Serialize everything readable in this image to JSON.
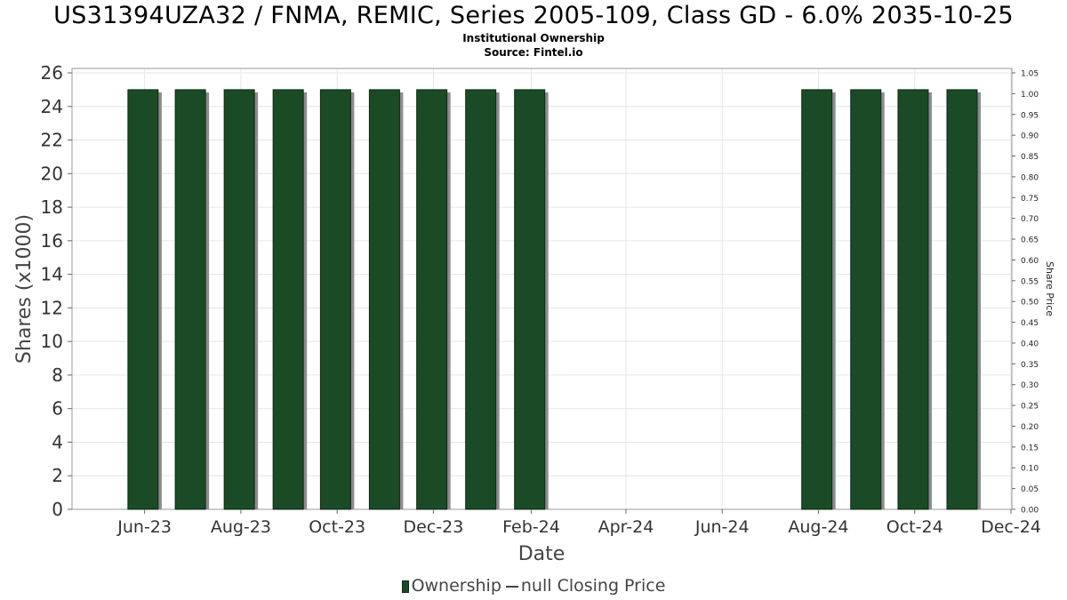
{
  "header": {
    "title": "US31394UZA32 / FNMA, REMIC, Series 2005-109, Class GD - 6.0% 2035-10-25",
    "subtitle": "Institutional Ownership",
    "source": "Source: Fintel.io"
  },
  "legend": {
    "ownership_label": "Ownership",
    "price_label": "null Closing Price"
  },
  "colors": {
    "bar": "#1a4a26",
    "bar_dark": "#0d2a14",
    "shadow": "#8c8c8c",
    "grid": "#e6e6e6"
  },
  "chart_data": {
    "type": "bar",
    "xlabel": "Date",
    "ylabel": "Shares (x1000)",
    "y2label": "Share Price",
    "ylim": [
      0,
      26
    ],
    "y2lim": [
      0,
      1.05
    ],
    "yticks": [
      "0",
      "2",
      "4",
      "6",
      "8",
      "10",
      "12",
      "14",
      "16",
      "18",
      "20",
      "22",
      "24",
      "26"
    ],
    "y2ticks": [
      "0.00",
      "0.05",
      "0.10",
      "0.15",
      "0.20",
      "0.25",
      "0.30",
      "0.35",
      "0.40",
      "0.45",
      "0.50",
      "0.55",
      "0.60",
      "0.65",
      "0.70",
      "0.75",
      "0.80",
      "0.85",
      "0.90",
      "0.95",
      "1.00",
      "1.05"
    ],
    "xticks": [
      {
        "label": "Jun-23",
        "date": "2023-06-01"
      },
      {
        "label": "Aug-23",
        "date": "2023-08-01"
      },
      {
        "label": "Oct-23",
        "date": "2023-10-01"
      },
      {
        "label": "Dec-23",
        "date": "2023-12-01"
      },
      {
        "label": "Feb-24",
        "date": "2024-02-01"
      },
      {
        "label": "Apr-24",
        "date": "2024-04-01"
      },
      {
        "label": "Jun-24",
        "date": "2024-06-01"
      },
      {
        "label": "Aug-24",
        "date": "2024-08-01"
      },
      {
        "label": "Oct-24",
        "date": "2024-10-01"
      },
      {
        "label": "Dec-24",
        "date": "2024-12-01"
      }
    ],
    "xlim": [
      "2023-04-16",
      "2024-12-01"
    ],
    "grid": true,
    "legend_position": "bottom",
    "series": [
      {
        "name": "Ownership",
        "points": [
          {
            "date": "2023-05-31",
            "value": 25
          },
          {
            "date": "2023-06-30",
            "value": 25
          },
          {
            "date": "2023-07-31",
            "value": 25
          },
          {
            "date": "2023-08-31",
            "value": 25
          },
          {
            "date": "2023-09-30",
            "value": 25
          },
          {
            "date": "2023-10-31",
            "value": 25
          },
          {
            "date": "2023-11-30",
            "value": 25
          },
          {
            "date": "2023-12-31",
            "value": 25
          },
          {
            "date": "2024-01-31",
            "value": 25
          },
          {
            "date": "2024-07-31",
            "value": 25
          },
          {
            "date": "2024-08-31",
            "value": 25
          },
          {
            "date": "2024-09-30",
            "value": 25
          },
          {
            "date": "2024-10-31",
            "value": 25
          }
        ]
      }
    ]
  }
}
